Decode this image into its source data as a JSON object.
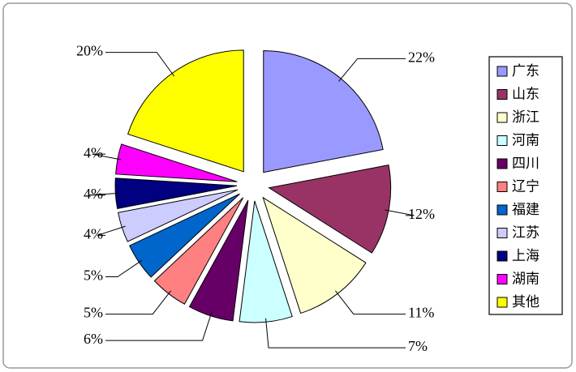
{
  "chart_data": {
    "type": "pie",
    "categories": [
      "广东",
      "山东",
      "浙江",
      "河南",
      "四川",
      "辽宁",
      "福建",
      "江苏",
      "上海",
      "湖南",
      "其他"
    ],
    "values": [
      22,
      12,
      11,
      7,
      6,
      5,
      5,
      4,
      4,
      4,
      20
    ],
    "value_labels": [
      "22%",
      "12%",
      "11%",
      "7%",
      "6%",
      "5%",
      "5%",
      "4%",
      "4%",
      "4%",
      "20%"
    ],
    "colors": [
      "#9999ff",
      "#993366",
      "#ffffcc",
      "#ccffff",
      "#660066",
      "#ff8080",
      "#0066cc",
      "#ccccff",
      "#000080",
      "#ff00ff",
      "#ffff00"
    ],
    "legend": "right"
  }
}
